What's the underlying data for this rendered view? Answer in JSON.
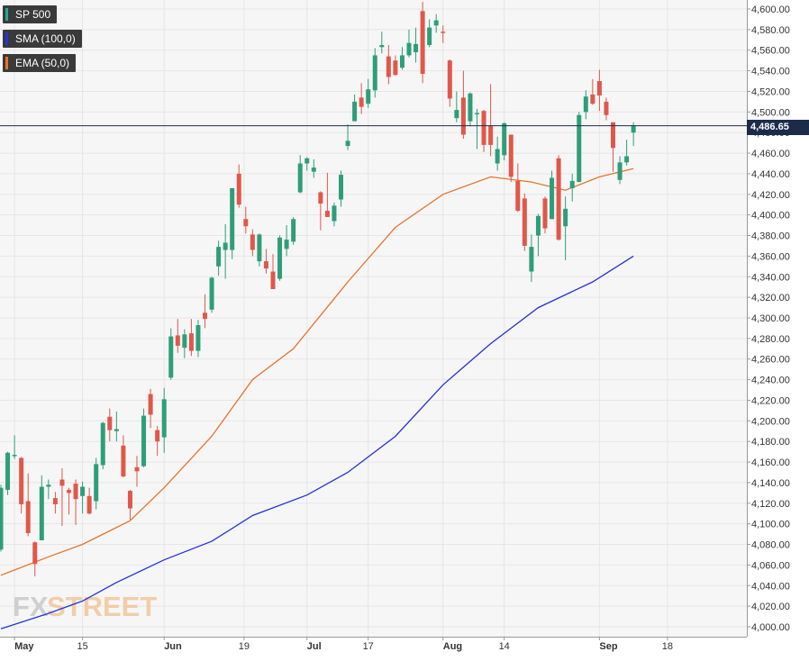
{
  "legend": [
    {
      "label": "SP 500",
      "color": "#26a69a"
    },
    {
      "label": "SMA (100,0)",
      "color": "#2233dd"
    },
    {
      "label": "EMA (50,0)",
      "color": "#e8742a"
    }
  ],
  "watermark": {
    "part1": "FX",
    "part2": "STREET"
  },
  "colors": {
    "up": "#2e9e7a",
    "down": "#e0584a",
    "sma": "#2233dd",
    "ema": "#e8742a",
    "price_line": "#1c2b4a",
    "grid": "#e6e6e6",
    "background": "#f6f6f6"
  },
  "chart_data": {
    "type": "candlestick",
    "title": "",
    "ylim": [
      3995,
      4610
    ],
    "y_ticks": [
      "4,000.00",
      "4,020.00",
      "4,040.00",
      "4,060.00",
      "4,080.00",
      "4,100.00",
      "4,120.00",
      "4,140.00",
      "4,160.00",
      "4,180.00",
      "4,200.00",
      "4,220.00",
      "4,240.00",
      "4,260.00",
      "4,280.00",
      "4,300.00",
      "4,320.00",
      "4,340.00",
      "4,360.00",
      "4,380.00",
      "4,400.00",
      "4,420.00",
      "4,440.00",
      "4,460.00",
      "4,480.00",
      "4,500.00",
      "4,520.00",
      "4,540.00",
      "4,560.00",
      "4,580.00",
      "4,600.00"
    ],
    "x_ticks": [
      {
        "label": "May",
        "date": "2023-05-01"
      },
      {
        "label": "15",
        "date": "2023-05-15"
      },
      {
        "label": "Jun",
        "date": "2023-06-01"
      },
      {
        "label": "19",
        "date": "2023-06-19"
      },
      {
        "label": "Jul",
        "date": "2023-07-03"
      },
      {
        "label": "17",
        "date": "2023-07-17"
      },
      {
        "label": "Aug",
        "date": "2023-08-01"
      },
      {
        "label": "14",
        "date": "2023-08-14"
      },
      {
        "label": "Sep",
        "date": "2023-09-01"
      },
      {
        "label": "18",
        "date": "2023-09-18"
      }
    ],
    "last_price": "4,486.65",
    "candles": [
      {
        "date": "2023-04-27",
        "o": 4075,
        "h": 4138,
        "l": 4073,
        "c": 4135
      },
      {
        "date": "2023-04-28",
        "o": 4133,
        "h": 4170,
        "l": 4128,
        "c": 4169
      },
      {
        "date": "2023-05-01",
        "o": 4166,
        "h": 4186,
        "l": 4163,
        "c": 4167
      },
      {
        "date": "2023-05-02",
        "o": 4164,
        "h": 4165,
        "l": 4110,
        "c": 4119
      },
      {
        "date": "2023-05-03",
        "o": 4122,
        "h": 4149,
        "l": 4088,
        "c": 4091
      },
      {
        "date": "2023-05-04",
        "o": 4082,
        "h": 4083,
        "l": 4049,
        "c": 4061
      },
      {
        "date": "2023-05-05",
        "o": 4084,
        "h": 4147,
        "l": 4084,
        "c": 4136
      },
      {
        "date": "2023-05-08",
        "o": 4136,
        "h": 4143,
        "l": 4124,
        "c": 4138
      },
      {
        "date": "2023-05-09",
        "o": 4125,
        "h": 4131,
        "l": 4110,
        "c": 4119
      },
      {
        "date": "2023-05-10",
        "o": 4143,
        "h": 4154,
        "l": 4098,
        "c": 4137
      },
      {
        "date": "2023-05-11",
        "o": 4133,
        "h": 4135,
        "l": 4109,
        "c": 4130
      },
      {
        "date": "2023-05-12",
        "o": 4139,
        "h": 4143,
        "l": 4099,
        "c": 4124
      },
      {
        "date": "2023-05-15",
        "o": 4127,
        "h": 4141,
        "l": 4110,
        "c": 4136
      },
      {
        "date": "2023-05-16",
        "o": 4127,
        "h": 4135,
        "l": 4109,
        "c": 4110
      },
      {
        "date": "2023-05-17",
        "o": 4122,
        "h": 4164,
        "l": 4114,
        "c": 4158
      },
      {
        "date": "2023-05-18",
        "o": 4157,
        "h": 4199,
        "l": 4153,
        "c": 4198
      },
      {
        "date": "2023-05-19",
        "o": 4204,
        "h": 4212,
        "l": 4180,
        "c": 4191
      },
      {
        "date": "2023-05-22",
        "o": 4190,
        "h": 4209,
        "l": 4180,
        "c": 4192
      },
      {
        "date": "2023-05-23",
        "o": 4176,
        "h": 4186,
        "l": 4145,
        "c": 4146
      },
      {
        "date": "2023-05-24",
        "o": 4132,
        "h": 4133,
        "l": 4104,
        "c": 4115
      },
      {
        "date": "2023-05-25",
        "o": 4155,
        "h": 4166,
        "l": 4136,
        "c": 4151
      },
      {
        "date": "2023-05-26",
        "o": 4156,
        "h": 4212,
        "l": 4155,
        "c": 4205
      },
      {
        "date": "2023-05-30",
        "o": 4226,
        "h": 4231,
        "l": 4193,
        "c": 4206
      },
      {
        "date": "2023-05-31",
        "o": 4191,
        "h": 4195,
        "l": 4166,
        "c": 4180
      },
      {
        "date": "2023-06-01",
        "o": 4184,
        "h": 4232,
        "l": 4169,
        "c": 4221
      },
      {
        "date": "2023-06-02",
        "o": 4242,
        "h": 4290,
        "l": 4240,
        "c": 4282
      },
      {
        "date": "2023-06-05",
        "o": 4283,
        "h": 4299,
        "l": 4266,
        "c": 4273
      },
      {
        "date": "2023-06-06",
        "o": 4271,
        "h": 4289,
        "l": 4261,
        "c": 4284
      },
      {
        "date": "2023-06-07",
        "o": 4285,
        "h": 4299,
        "l": 4263,
        "c": 4268
      },
      {
        "date": "2023-06-08",
        "o": 4268,
        "h": 4298,
        "l": 4262,
        "c": 4293
      },
      {
        "date": "2023-06-09",
        "o": 4305,
        "h": 4323,
        "l": 4290,
        "c": 4299
      },
      {
        "date": "2023-06-12",
        "o": 4308,
        "h": 4340,
        "l": 4305,
        "c": 4339
      },
      {
        "date": "2023-06-13",
        "o": 4350,
        "h": 4375,
        "l": 4341,
        "c": 4369
      },
      {
        "date": "2023-06-14",
        "o": 4366,
        "h": 4391,
        "l": 4338,
        "c": 4373
      },
      {
        "date": "2023-06-15",
        "o": 4366,
        "h": 4426,
        "l": 4357,
        "c": 4426
      },
      {
        "date": "2023-06-16",
        "o": 4440,
        "h": 4449,
        "l": 4407,
        "c": 4410
      },
      {
        "date": "2023-06-20",
        "o": 4396,
        "h": 4408,
        "l": 4382,
        "c": 4389
      },
      {
        "date": "2023-06-21",
        "o": 4381,
        "h": 4386,
        "l": 4360,
        "c": 4366
      },
      {
        "date": "2023-06-22",
        "o": 4355,
        "h": 4382,
        "l": 4350,
        "c": 4381
      },
      {
        "date": "2023-06-23",
        "o": 4355,
        "h": 4367,
        "l": 4343,
        "c": 4348
      },
      {
        "date": "2023-06-26",
        "o": 4345,
        "h": 4362,
        "l": 4328,
        "c": 4328
      },
      {
        "date": "2023-06-27",
        "o": 4338,
        "h": 4380,
        "l": 4336,
        "c": 4378
      },
      {
        "date": "2023-06-28",
        "o": 4367,
        "h": 4390,
        "l": 4360,
        "c": 4376
      },
      {
        "date": "2023-06-29",
        "o": 4374,
        "h": 4398,
        "l": 4371,
        "c": 4396
      },
      {
        "date": "2023-06-30",
        "o": 4422,
        "h": 4458,
        "l": 4421,
        "c": 4450
      },
      {
        "date": "2023-07-03",
        "o": 4450,
        "h": 4456,
        "l": 4443,
        "c": 4455
      },
      {
        "date": "2023-07-05",
        "o": 4442,
        "h": 4454,
        "l": 4436,
        "c": 4446
      },
      {
        "date": "2023-07-06",
        "o": 4422,
        "h": 4423,
        "l": 4385,
        "c": 4411
      },
      {
        "date": "2023-07-07",
        "o": 4404,
        "h": 4441,
        "l": 4398,
        "c": 4398
      },
      {
        "date": "2023-07-10",
        "o": 4394,
        "h": 4412,
        "l": 4389,
        "c": 4409
      },
      {
        "date": "2023-07-11",
        "o": 4415,
        "h": 4443,
        "l": 4408,
        "c": 4439
      },
      {
        "date": "2023-07-12",
        "o": 4467,
        "h": 4488,
        "l": 4463,
        "c": 4472
      },
      {
        "date": "2023-07-13",
        "o": 4491,
        "h": 4517,
        "l": 4491,
        "c": 4510
      },
      {
        "date": "2023-07-14",
        "o": 4514,
        "h": 4528,
        "l": 4498,
        "c": 4505
      },
      {
        "date": "2023-07-17",
        "o": 4508,
        "h": 4532,
        "l": 4504,
        "c": 4522
      },
      {
        "date": "2023-07-18",
        "o": 4521,
        "h": 4562,
        "l": 4514,
        "c": 4555
      },
      {
        "date": "2023-07-19",
        "o": 4563,
        "h": 4578,
        "l": 4557,
        "c": 4565
      },
      {
        "date": "2023-07-20",
        "o": 4554,
        "h": 4565,
        "l": 4527,
        "c": 4534
      },
      {
        "date": "2023-07-21",
        "o": 4550,
        "h": 4555,
        "l": 4535,
        "c": 4536
      },
      {
        "date": "2023-07-24",
        "o": 4543,
        "h": 4563,
        "l": 4541,
        "c": 4555
      },
      {
        "date": "2023-07-25",
        "o": 4555,
        "h": 4580,
        "l": 4553,
        "c": 4567
      },
      {
        "date": "2023-07-26",
        "o": 4558,
        "h": 4582,
        "l": 4548,
        "c": 4566
      },
      {
        "date": "2023-07-27",
        "o": 4598,
        "h": 4607,
        "l": 4528,
        "c": 4537
      },
      {
        "date": "2023-07-28",
        "o": 4565,
        "h": 4590,
        "l": 4563,
        "c": 4582
      },
      {
        "date": "2023-07-31",
        "o": 4584,
        "h": 4595,
        "l": 4577,
        "c": 4589
      },
      {
        "date": "2023-08-01",
        "o": 4578,
        "h": 4584,
        "l": 4567,
        "c": 4577
      },
      {
        "date": "2023-08-02",
        "o": 4550,
        "h": 4551,
        "l": 4505,
        "c": 4513
      },
      {
        "date": "2023-08-03",
        "o": 4494,
        "h": 4520,
        "l": 4490,
        "c": 4502
      },
      {
        "date": "2023-08-04",
        "o": 4514,
        "h": 4540,
        "l": 4474,
        "c": 4478
      },
      {
        "date": "2023-08-07",
        "o": 4491,
        "h": 4519,
        "l": 4486,
        "c": 4518
      },
      {
        "date": "2023-08-08",
        "o": 4498,
        "h": 4503,
        "l": 4464,
        "c": 4499
      },
      {
        "date": "2023-08-09",
        "o": 4501,
        "h": 4502,
        "l": 4461,
        "c": 4468
      },
      {
        "date": "2023-08-10",
        "o": 4487,
        "h": 4527,
        "l": 4457,
        "c": 4468
      },
      {
        "date": "2023-08-11",
        "o": 4450,
        "h": 4476,
        "l": 4443,
        "c": 4464
      },
      {
        "date": "2023-08-14",
        "o": 4458,
        "h": 4490,
        "l": 4453,
        "c": 4489
      },
      {
        "date": "2023-08-15",
        "o": 4478,
        "h": 4478,
        "l": 4432,
        "c": 4437
      },
      {
        "date": "2023-08-16",
        "o": 4433,
        "h": 4450,
        "l": 4403,
        "c": 4404
      },
      {
        "date": "2023-08-17",
        "o": 4416,
        "h": 4421,
        "l": 4365,
        "c": 4370
      },
      {
        "date": "2023-08-18",
        "o": 4345,
        "h": 4381,
        "l": 4335,
        "c": 4369
      },
      {
        "date": "2023-08-21",
        "o": 4380,
        "h": 4401,
        "l": 4360,
        "c": 4399
      },
      {
        "date": "2023-08-22",
        "o": 4416,
        "h": 4418,
        "l": 4382,
        "c": 4387
      },
      {
        "date": "2023-08-23",
        "o": 4396,
        "h": 4443,
        "l": 4396,
        "c": 4436
      },
      {
        "date": "2023-08-24",
        "o": 4455,
        "h": 4458,
        "l": 4375,
        "c": 4376
      },
      {
        "date": "2023-08-25",
        "o": 4389,
        "h": 4418,
        "l": 4356,
        "c": 4406
      },
      {
        "date": "2023-08-28",
        "o": 4426,
        "h": 4440,
        "l": 4413,
        "c": 4433
      },
      {
        "date": "2023-08-29",
        "o": 4432,
        "h": 4500,
        "l": 4432,
        "c": 4497
      },
      {
        "date": "2023-08-30",
        "o": 4500,
        "h": 4521,
        "l": 4493,
        "c": 4515
      },
      {
        "date": "2023-08-31",
        "o": 4517,
        "h": 4532,
        "l": 4507,
        "c": 4508
      },
      {
        "date": "2023-09-01",
        "o": 4530,
        "h": 4541,
        "l": 4501,
        "c": 4516
      },
      {
        "date": "2023-09-05",
        "o": 4510,
        "h": 4514,
        "l": 4492,
        "c": 4497
      },
      {
        "date": "2023-09-06",
        "o": 4490,
        "h": 4490,
        "l": 4442,
        "c": 4465
      },
      {
        "date": "2023-09-07",
        "o": 4434,
        "h": 4457,
        "l": 4430,
        "c": 4451
      },
      {
        "date": "2023-09-08",
        "o": 4451,
        "h": 4473,
        "l": 4448,
        "c": 4457
      },
      {
        "date": "2023-09-11",
        "o": 4480,
        "h": 4490,
        "l": 4467,
        "c": 4487
      }
    ],
    "series": [
      {
        "name": "SMA (100,0)",
        "points": [
          {
            "date": "2023-04-27",
            "y": 3998
          },
          {
            "date": "2023-05-08",
            "y": 4013
          },
          {
            "date": "2023-05-15",
            "y": 4025
          },
          {
            "date": "2023-05-22",
            "y": 4043
          },
          {
            "date": "2023-06-01",
            "y": 4065
          },
          {
            "date": "2023-06-12",
            "y": 4083
          },
          {
            "date": "2023-06-21",
            "y": 4108
          },
          {
            "date": "2023-07-03",
            "y": 4128
          },
          {
            "date": "2023-07-12",
            "y": 4150
          },
          {
            "date": "2023-07-21",
            "y": 4185
          },
          {
            "date": "2023-08-01",
            "y": 4235
          },
          {
            "date": "2023-08-10",
            "y": 4275
          },
          {
            "date": "2023-08-21",
            "y": 4310
          },
          {
            "date": "2023-08-31",
            "y": 4335
          },
          {
            "date": "2023-09-11",
            "y": 4360
          }
        ]
      },
      {
        "name": "EMA (50,0)",
        "points": [
          {
            "date": "2023-04-27",
            "y": 4050
          },
          {
            "date": "2023-05-08",
            "y": 4068
          },
          {
            "date": "2023-05-15",
            "y": 4080
          },
          {
            "date": "2023-05-24",
            "y": 4103
          },
          {
            "date": "2023-06-01",
            "y": 4135
          },
          {
            "date": "2023-06-12",
            "y": 4185
          },
          {
            "date": "2023-06-21",
            "y": 4240
          },
          {
            "date": "2023-06-29",
            "y": 4270
          },
          {
            "date": "2023-07-12",
            "y": 4335
          },
          {
            "date": "2023-07-21",
            "y": 4388
          },
          {
            "date": "2023-08-01",
            "y": 4420
          },
          {
            "date": "2023-08-10",
            "y": 4437
          },
          {
            "date": "2023-08-18",
            "y": 4432
          },
          {
            "date": "2023-08-25",
            "y": 4424
          },
          {
            "date": "2023-09-01",
            "y": 4437
          },
          {
            "date": "2023-09-11",
            "y": 4445
          }
        ]
      }
    ]
  }
}
